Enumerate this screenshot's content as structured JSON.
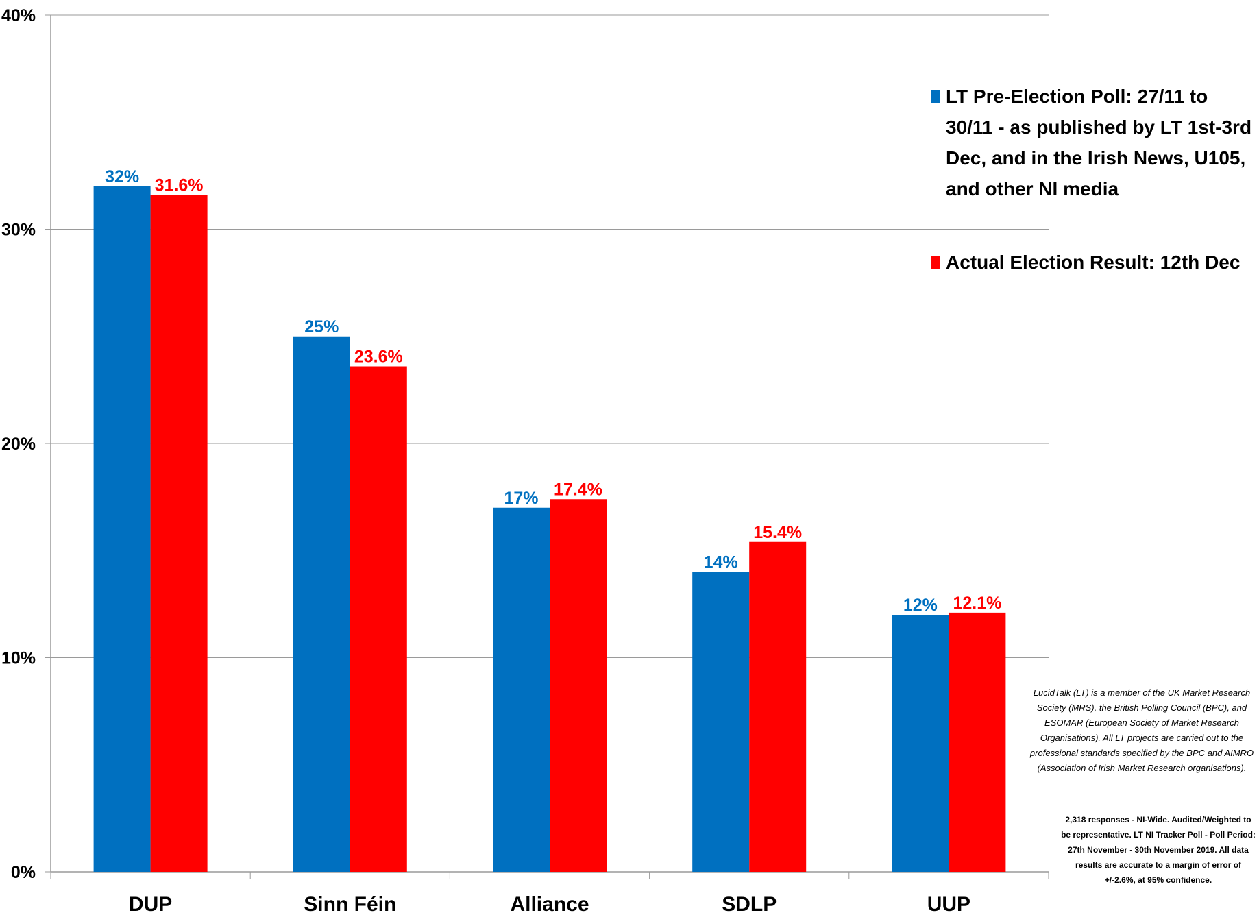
{
  "chart_data": {
    "type": "bar",
    "title": "",
    "xlabel": "",
    "ylabel": "",
    "categories": [
      "DUP",
      "Sinn Féin",
      "Alliance",
      "SDLP",
      "UUP"
    ],
    "series": [
      {
        "name": "LT Pre-Election Poll: 27/11 to 30/11 - as published by LT 1st-3rd Dec, and in the Irish News, U105, and other NI media",
        "color": "#0070c0",
        "values": [
          32,
          25,
          17,
          14,
          12
        ],
        "labels": [
          "32%",
          "25%",
          "17%",
          "14%",
          "12%"
        ]
      },
      {
        "name": "Actual Election Result: 12th Dec",
        "color": "#ff0000",
        "values": [
          31.6,
          23.6,
          17.4,
          15.4,
          12.1
        ],
        "labels": [
          "31.6%",
          "23.6%",
          "17.4%",
          "15.4%",
          "12.1%"
        ]
      }
    ],
    "ylim": [
      0,
      40
    ],
    "yticks": [
      0,
      10,
      20,
      30,
      40
    ],
    "ytick_labels": [
      "0%",
      "10%",
      "20%",
      "30%",
      "40%"
    ],
    "grid": true,
    "legend_position": "right"
  },
  "notes": {
    "membership": "LucidTalk (LT) is a member of the UK Market Research Society (MRS), the British Polling Council (BPC), and ESOMAR (European Society of Market Research Organisations). All LT projects are carried out to the professional standards specified by the BPC and AIMRO (Association of Irish Market Research organisations).",
    "methodology": "2,318 responses - NI-Wide. Audited/Weighted to be representative. LT NI Tracker Poll - Poll Period: 27th November - 30th November 2019. All data results are accurate to a margin of error of +/-2.6%, at 95% confidence."
  }
}
